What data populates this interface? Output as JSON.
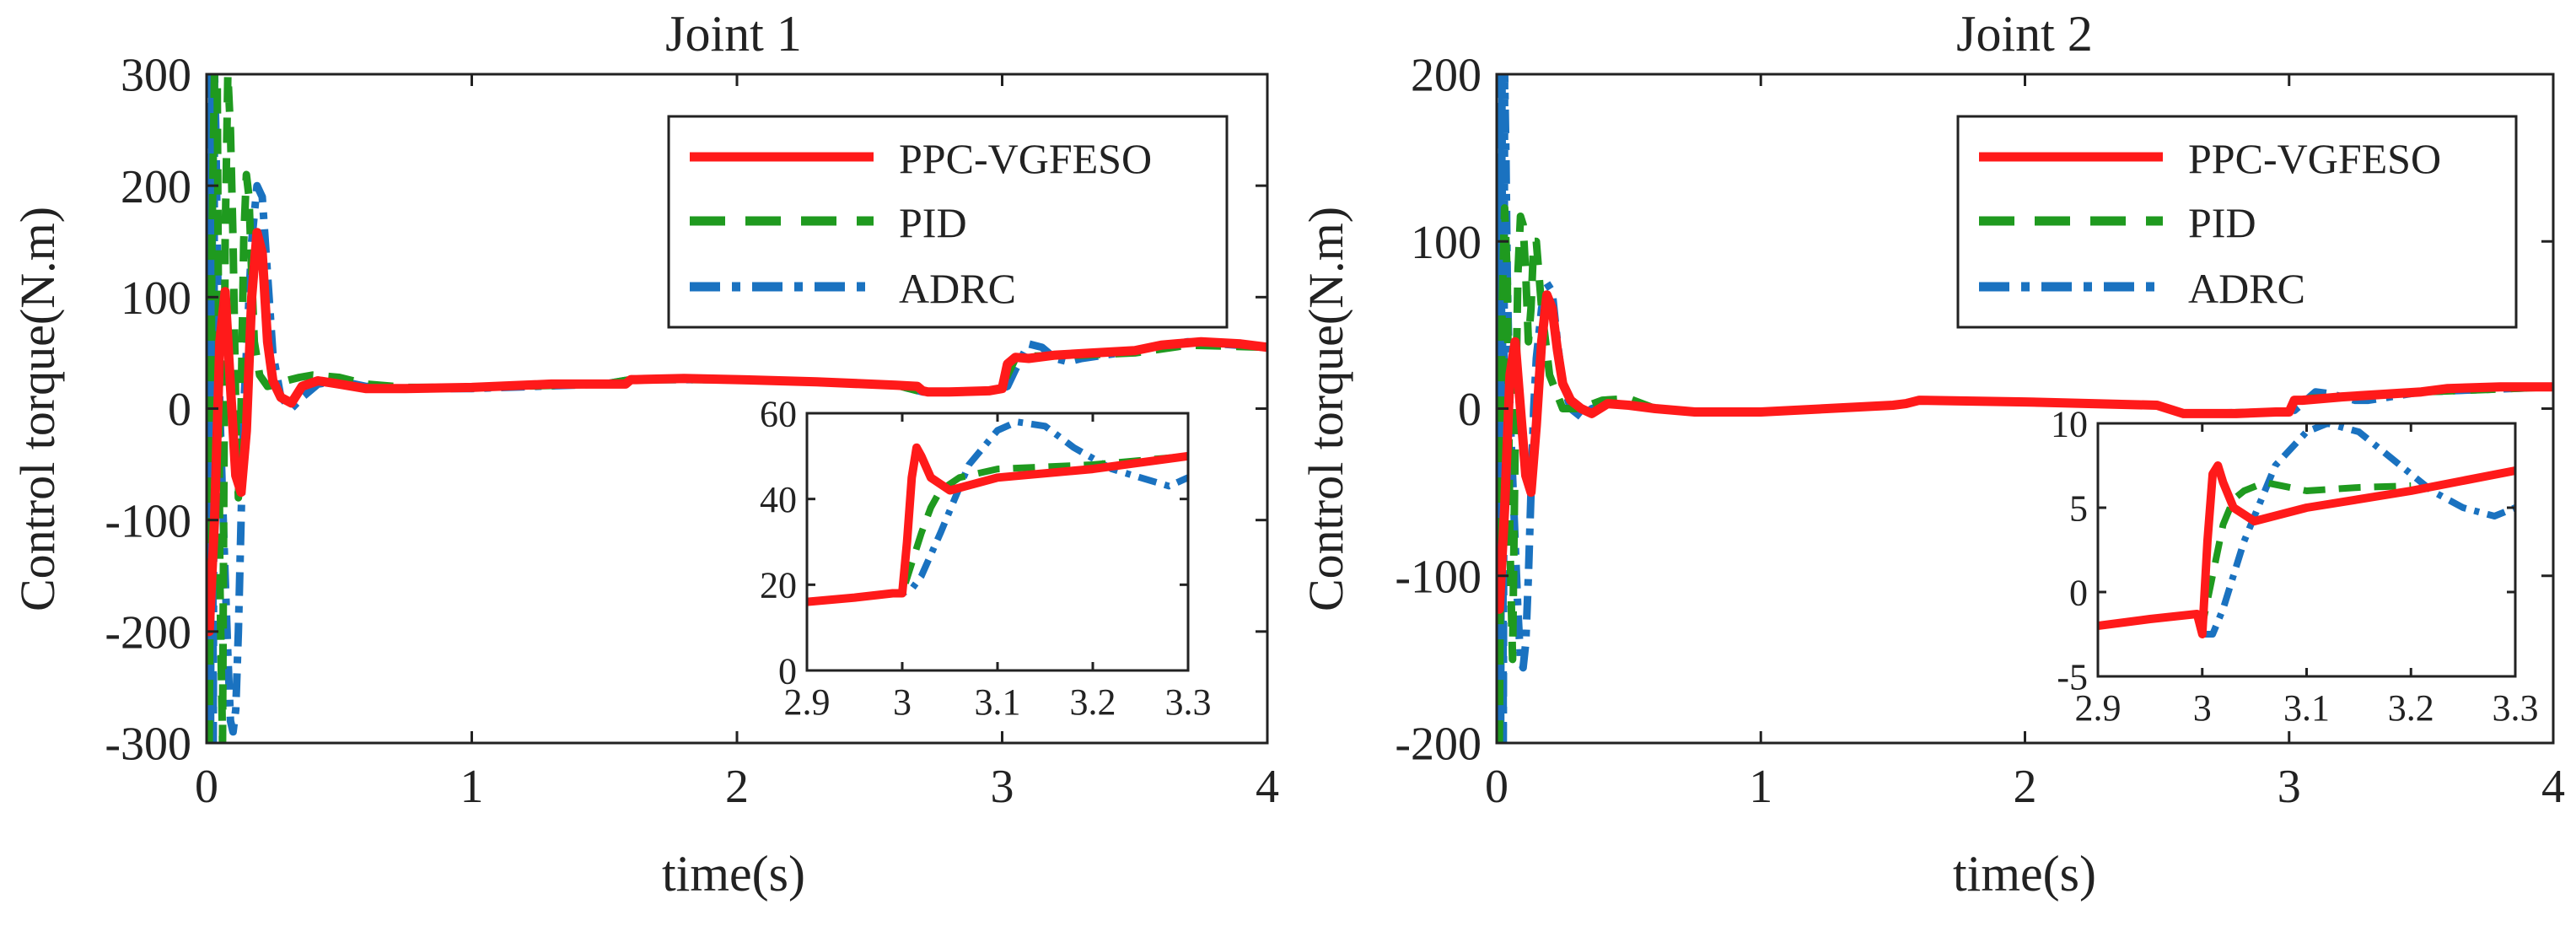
{
  "colors": {
    "ppc": "#ff1a1a",
    "pid": "#1f9a1f",
    "adrc": "#1a72c0",
    "axis": "#222222"
  },
  "chart_data": [
    {
      "type": "line",
      "id": "joint1",
      "title": "Joint 1",
      "xlabel": "time(s)",
      "ylabel": "Control torque(N.m)",
      "xlim": [
        0,
        4
      ],
      "ylim": [
        -300,
        300
      ],
      "xticks": [
        0,
        1,
        2,
        3,
        4
      ],
      "xtick_labels": [
        "0",
        "1",
        "2",
        "3",
        "4"
      ],
      "yticks": [
        -300,
        -200,
        -100,
        0,
        100,
        200,
        300
      ],
      "ytick_labels": [
        "-300",
        "-200",
        "-100",
        "0",
        "100",
        "200",
        "300"
      ],
      "legend": {
        "placement": "top-right",
        "entries": [
          "PPC-VGFESO",
          "PID",
          "ADRC"
        ]
      },
      "series": [
        {
          "name": "PPC-VGFESO",
          "style": "solid",
          "x": [
            0,
            0.01,
            0.03,
            0.05,
            0.07,
            0.09,
            0.11,
            0.13,
            0.15,
            0.17,
            0.19,
            0.21,
            0.23,
            0.25,
            0.28,
            0.32,
            0.36,
            0.42,
            0.5,
            0.6,
            0.75,
            1.0,
            1.3,
            1.5,
            1.58,
            1.6,
            1.62,
            1.8,
            2.0,
            2.3,
            2.6,
            2.68,
            2.7,
            2.72,
            2.8,
            2.95,
            3.0,
            3.02,
            3.05,
            3.1,
            3.2,
            3.35,
            3.5,
            3.6,
            3.75,
            3.9,
            4.0
          ],
          "y": [
            -180,
            -200,
            -100,
            60,
            105,
            20,
            -60,
            -75,
            -20,
            100,
            158,
            140,
            60,
            25,
            10,
            5,
            20,
            25,
            22,
            18,
            18,
            19,
            22,
            22,
            22,
            26,
            26,
            27,
            26,
            24,
            21,
            20,
            16,
            15,
            15,
            16,
            18,
            40,
            46,
            45,
            48,
            50,
            52,
            57,
            60,
            58,
            55
          ]
        },
        {
          "name": "PID",
          "style": "dashed",
          "x": [
            0,
            0.01,
            0.02,
            0.03,
            0.04,
            0.05,
            0.06,
            0.07,
            0.08,
            0.09,
            0.1,
            0.11,
            0.12,
            0.13,
            0.14,
            0.15,
            0.16,
            0.17,
            0.18,
            0.2,
            0.23,
            0.27,
            0.3,
            0.35,
            0.4,
            0.5,
            0.6,
            0.75,
            1.0,
            1.5,
            1.6,
            2.0,
            2.6,
            2.7,
            2.8,
            2.95,
            3.0,
            3.02,
            3.05,
            3.1,
            3.3,
            3.5,
            3.7,
            4.0
          ],
          "y": [
            -300,
            -300,
            150,
            300,
            300,
            -150,
            -300,
            150,
            300,
            250,
            150,
            0,
            -80,
            0,
            150,
            210,
            190,
            120,
            60,
            30,
            20,
            22,
            25,
            28,
            30,
            28,
            22,
            19,
            19,
            22,
            26,
            26,
            21,
            15,
            15,
            16,
            18,
            30,
            45,
            47,
            48,
            50,
            57,
            55
          ]
        },
        {
          "name": "ADRC",
          "style": "dashdot",
          "x": [
            0,
            0.005,
            0.01,
            0.015,
            0.02,
            0.025,
            0.03,
            0.035,
            0.04,
            0.05,
            0.06,
            0.07,
            0.08,
            0.09,
            0.1,
            0.11,
            0.12,
            0.13,
            0.14,
            0.15,
            0.17,
            0.19,
            0.21,
            0.23,
            0.25,
            0.28,
            0.32,
            0.36,
            0.42,
            0.5,
            0.6,
            0.75,
            1.0,
            1.5,
            1.6,
            2.0,
            2.6,
            2.7,
            2.8,
            2.95,
            3.0,
            3.02,
            3.05,
            3.1,
            3.15,
            3.2,
            3.25,
            3.3,
            3.5,
            3.7,
            4.0
          ],
          "y": [
            300,
            -300,
            300,
            -300,
            300,
            -300,
            300,
            250,
            150,
            0,
            -80,
            -150,
            -220,
            -280,
            -290,
            -270,
            -200,
            -100,
            0,
            50,
            150,
            200,
            190,
            120,
            50,
            10,
            0,
            10,
            22,
            25,
            20,
            18,
            18,
            22,
            26,
            26,
            21,
            15,
            15,
            16,
            18,
            20,
            35,
            58,
            55,
            45,
            42,
            45,
            52,
            60,
            55
          ]
        }
      ],
      "inset": {
        "xlim": [
          2.9,
          3.3
        ],
        "ylim": [
          0,
          60
        ],
        "xticks": [
          2.9,
          3.0,
          3.1,
          3.2,
          3.3
        ],
        "xtick_labels": [
          "2.9",
          "3",
          "3.1",
          "3.2",
          "3.3"
        ],
        "yticks": [
          0,
          20,
          40,
          60
        ],
        "ytick_labels": [
          "0",
          "20",
          "40",
          "60"
        ],
        "series": [
          {
            "name": "PPC-VGFESO",
            "x": [
              2.9,
              2.95,
              2.99,
              3.0,
              3.005,
              3.01,
              3.015,
              3.02,
              3.03,
              3.05,
              3.1,
              3.2,
              3.3
            ],
            "y": [
              16,
              17,
              18,
              18,
              30,
              45,
              52,
              50,
              45,
              42,
              45,
              47,
              50
            ]
          },
          {
            "name": "PID",
            "x": [
              2.9,
              2.95,
              2.99,
              3.0,
              3.01,
              3.02,
              3.03,
              3.04,
              3.06,
              3.1,
              3.2,
              3.3
            ],
            "y": [
              16,
              17,
              18,
              18,
              25,
              32,
              38,
              42,
              45,
              47,
              48,
              50
            ]
          },
          {
            "name": "ADRC",
            "x": [
              2.9,
              2.95,
              2.99,
              3.0,
              3.01,
              3.02,
              3.04,
              3.07,
              3.1,
              3.12,
              3.15,
              3.18,
              3.22,
              3.25,
              3.28,
              3.3
            ],
            "y": [
              16,
              17,
              18,
              18,
              19,
              22,
              32,
              48,
              56,
              58,
              57,
              52,
              47,
              45,
              43,
              45
            ]
          }
        ]
      }
    },
    {
      "type": "line",
      "id": "joint2",
      "title": "Joint 2",
      "xlabel": "time(s)",
      "ylabel": "Control torque(N.m)",
      "xlim": [
        0,
        4
      ],
      "ylim": [
        -200,
        200
      ],
      "xticks": [
        0,
        1,
        2,
        3,
        4
      ],
      "xtick_labels": [
        "0",
        "1",
        "2",
        "3",
        "4"
      ],
      "yticks": [
        -200,
        -100,
        0,
        100,
        200
      ],
      "ytick_labels": [
        "-200",
        "-100",
        "0",
        "100",
        "200"
      ],
      "legend": {
        "placement": "top-right",
        "entries": [
          "PPC-VGFESO",
          "PID",
          "ADRC"
        ]
      },
      "series": [
        {
          "name": "PPC-VGFESO",
          "style": "solid",
          "x": [
            0,
            0.01,
            0.03,
            0.05,
            0.07,
            0.09,
            0.11,
            0.13,
            0.15,
            0.17,
            0.19,
            0.21,
            0.23,
            0.25,
            0.28,
            0.32,
            0.36,
            0.42,
            0.5,
            0.6,
            0.75,
            1.0,
            1.5,
            1.55,
            1.6,
            2.0,
            2.5,
            2.6,
            2.8,
            2.95,
            3.0,
            3.02,
            3.05,
            3.2,
            3.5,
            3.6,
            3.8,
            4.0
          ],
          "y": [
            -90,
            -120,
            -60,
            20,
            40,
            0,
            -40,
            -50,
            -10,
            40,
            68,
            60,
            35,
            15,
            5,
            0,
            -3,
            3,
            2,
            0,
            -2,
            -2,
            2,
            3,
            5,
            4,
            2,
            -3,
            -3,
            -2,
            -2,
            5,
            5,
            7,
            10,
            12,
            13,
            13
          ]
        },
        {
          "name": "PID",
          "style": "dashed",
          "x": [
            0,
            0.01,
            0.02,
            0.03,
            0.04,
            0.05,
            0.06,
            0.07,
            0.08,
            0.09,
            0.1,
            0.11,
            0.12,
            0.13,
            0.14,
            0.15,
            0.17,
            0.2,
            0.25,
            0.3,
            0.35,
            0.4,
            0.5,
            0.6,
            0.75,
            1.0,
            1.5,
            1.6,
            2.5,
            2.6,
            2.95,
            3.0,
            3.02,
            3.05,
            3.2,
            3.5,
            4.0
          ],
          "y": [
            -200,
            -200,
            60,
            120,
            80,
            -80,
            -150,
            -20,
            80,
            115,
            110,
            80,
            40,
            60,
            100,
            100,
            60,
            20,
            0,
            0,
            2,
            5,
            6,
            0,
            -2,
            -2,
            2,
            5,
            2,
            -3,
            -2,
            -2,
            5,
            6,
            7,
            10,
            13
          ]
        },
        {
          "name": "ADRC",
          "style": "dashdot",
          "x": [
            0,
            0.005,
            0.01,
            0.015,
            0.02,
            0.025,
            0.03,
            0.035,
            0.04,
            0.05,
            0.06,
            0.07,
            0.08,
            0.09,
            0.1,
            0.11,
            0.12,
            0.13,
            0.14,
            0.15,
            0.17,
            0.19,
            0.21,
            0.23,
            0.25,
            0.28,
            0.32,
            0.36,
            0.42,
            0.5,
            0.6,
            0.75,
            1.0,
            1.5,
            1.6,
            2.5,
            2.6,
            2.95,
            3.0,
            3.02,
            3.05,
            3.1,
            3.15,
            3.2,
            3.25,
            3.3,
            3.5,
            4.0
          ],
          "y": [
            200,
            -200,
            200,
            -200,
            200,
            -200,
            200,
            150,
            80,
            0,
            -40,
            -80,
            -120,
            -150,
            -155,
            -140,
            -100,
            -50,
            0,
            30,
            60,
            75,
            70,
            40,
            15,
            0,
            -5,
            0,
            3,
            2,
            0,
            -2,
            -2,
            2,
            5,
            2,
            -3,
            -2,
            -2,
            -1,
            3,
            10,
            9,
            7,
            5,
            5,
            10,
            13
          ]
        }
      ],
      "inset": {
        "xlim": [
          2.9,
          3.3
        ],
        "ylim": [
          -5,
          10
        ],
        "xticks": [
          2.9,
          3.0,
          3.1,
          3.2,
          3.3
        ],
        "xtick_labels": [
          "2.9",
          "3",
          "3.1",
          "3.2",
          "3.3"
        ],
        "yticks": [
          -5,
          0,
          5,
          10
        ],
        "ytick_labels": [
          "-5",
          "0",
          "5",
          "10"
        ],
        "series": [
          {
            "name": "PPC-VGFESO",
            "x": [
              2.9,
              2.95,
              2.995,
              3.0,
              3.005,
              3.01,
              3.015,
              3.02,
              3.03,
              3.05,
              3.1,
              3.2,
              3.3
            ],
            "y": [
              -2,
              -1.6,
              -1.3,
              -2.5,
              3,
              7,
              7.5,
              6.5,
              5,
              4.2,
              5,
              6,
              7.2
            ]
          },
          {
            "name": "PID",
            "x": [
              2.9,
              2.95,
              2.995,
              3.0,
              3.01,
              3.02,
              3.03,
              3.04,
              3.06,
              3.1,
              3.15,
              3.2
            ],
            "y": [
              -2,
              -1.6,
              -1.3,
              -2,
              1,
              4,
              5.5,
              6,
              6.5,
              6,
              6.2,
              6.3
            ]
          },
          {
            "name": "ADRC",
            "x": [
              2.9,
              2.95,
              2.995,
              3.0,
              3.01,
              3.02,
              3.04,
              3.07,
              3.1,
              3.12,
              3.15,
              3.18,
              3.22,
              3.25,
              3.28,
              3.3
            ],
            "y": [
              -2,
              -1.6,
              -1.3,
              -2.5,
              -2.5,
              -1,
              3,
              7.5,
              9.5,
              10,
              9.5,
              8,
              6,
              5,
              4.5,
              5
            ]
          }
        ]
      }
    }
  ]
}
